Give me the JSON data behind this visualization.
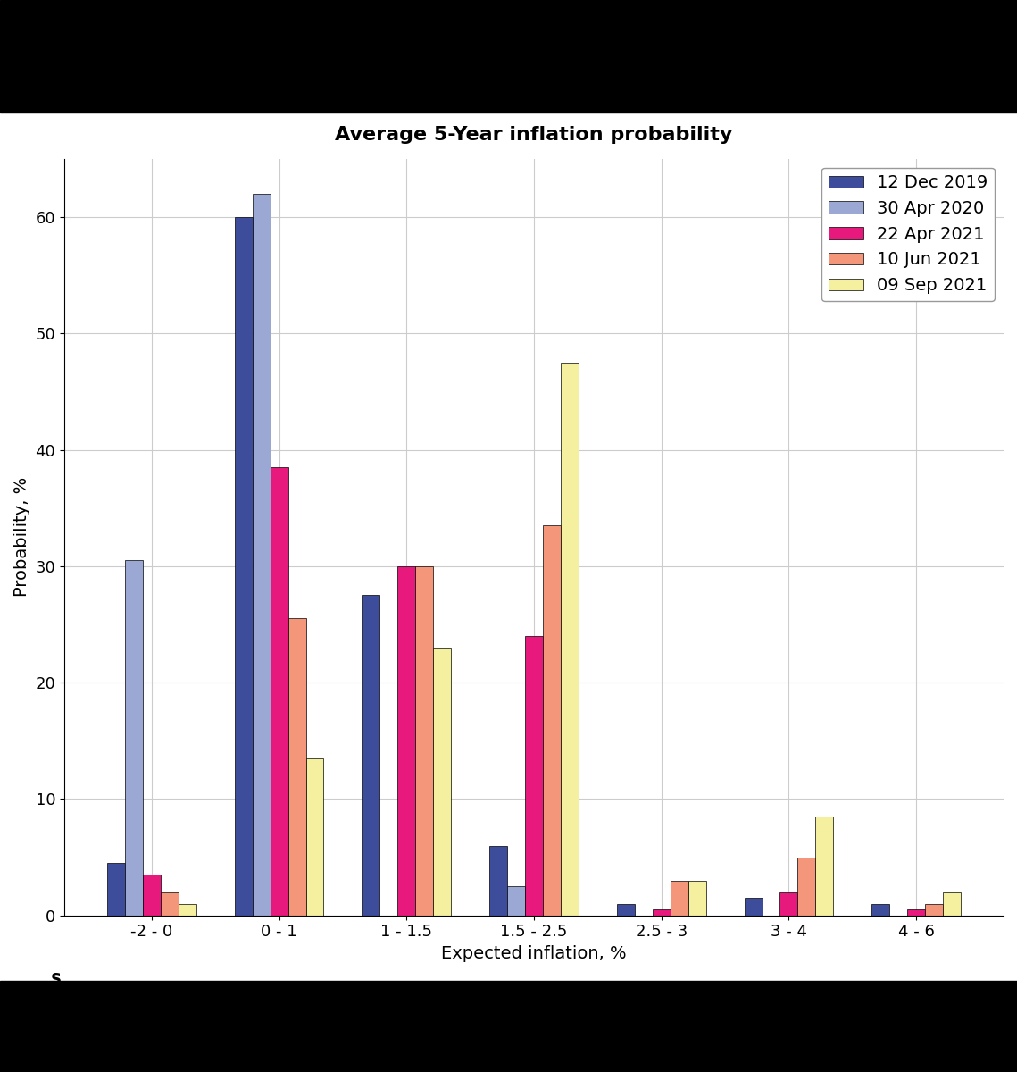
{
  "title": "Average 5-Year inflation probability",
  "xlabel": "Expected inflation, %",
  "ylabel": "Probability, %",
  "categories": [
    "-2 - 0",
    "0 - 1",
    "1 - 1.5",
    "1.5 - 2.5",
    "2.5 - 3",
    "3 - 4",
    "4 - 6"
  ],
  "series": [
    {
      "label": "12 Dec 2019",
      "color": "#3d4d9b",
      "values": [
        4.5,
        60.0,
        27.5,
        6.0,
        1.0,
        1.5,
        1.0
      ]
    },
    {
      "label": "30 Apr 2020",
      "color": "#9ba8d4",
      "values": [
        30.5,
        62.0,
        0.0,
        2.5,
        0.0,
        0.0,
        0.0
      ]
    },
    {
      "label": "22 Apr 2021",
      "color": "#e8197d",
      "values": [
        3.5,
        38.5,
        30.0,
        24.0,
        0.5,
        2.0,
        0.5
      ]
    },
    {
      "label": "10 Jun 2021",
      "color": "#f4967a",
      "values": [
        2.0,
        25.5,
        30.0,
        33.5,
        3.0,
        5.0,
        1.0
      ]
    },
    {
      "label": "09 Sep 2021",
      "color": "#f5f0a0",
      "values": [
        1.0,
        13.5,
        23.0,
        47.5,
        3.0,
        8.5,
        2.0
      ]
    }
  ],
  "ylim": [
    0,
    65
  ],
  "yticks": [
    0,
    10,
    20,
    30,
    40,
    50,
    60
  ],
  "figsize": [
    11.39,
    12.0
  ],
  "dpi": 100,
  "background_color": "#ffffff",
  "grid_color": "#cccccc",
  "bar_edge_color": "#000000",
  "legend_fontsize": 14,
  "title_fontsize": 16,
  "axis_label_fontsize": 14,
  "tick_fontsize": 13
}
